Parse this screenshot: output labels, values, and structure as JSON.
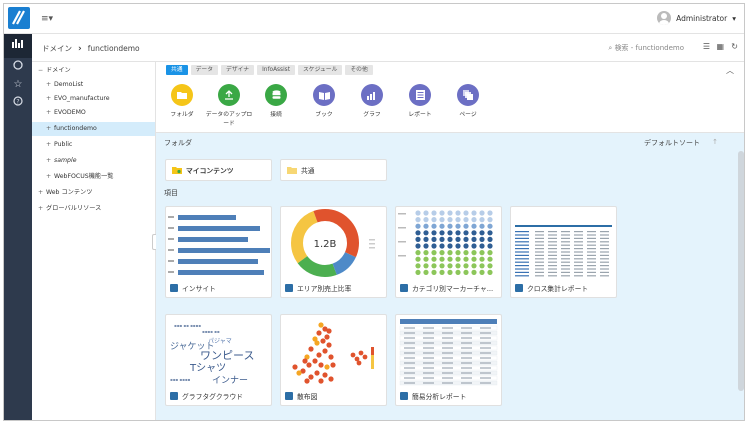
{
  "header": {
    "menu_glyph": "≡▾",
    "user": "Administrator",
    "user_caret": "▾"
  },
  "leftnav": {
    "items": [
      "chart-icon",
      "circle-icon",
      "star-icon",
      "help-icon"
    ]
  },
  "breadcrumb": {
    "root": "ドメイン",
    "separator": "›",
    "current": "functiondemo"
  },
  "toolbar": {
    "search_placeholder": "検索 - functiondemo"
  },
  "tree": {
    "root": "ドメイン",
    "items": [
      "DemoList",
      "EVO_manufacture",
      "EVODEMO",
      "functiondemo",
      "Public",
      "sample",
      "WebFOCUS機能一覧"
    ],
    "others": [
      "Web コンテンツ",
      "グローバルリソース"
    ]
  },
  "ribbon": {
    "tabs": [
      "共通",
      "データ",
      "デザイナ",
      "InfoAssist",
      "スケジュール",
      "その他"
    ],
    "tools": [
      {
        "label": "フォルダ",
        "color": "#f5c518"
      },
      {
        "label": "データのアップロード",
        "color": "#3aa845"
      },
      {
        "label": "接続",
        "color": "#3aa845"
      },
      {
        "label": "ブック",
        "color": "#6c6fc4"
      },
      {
        "label": "グラフ",
        "color": "#6c6fc4"
      },
      {
        "label": "レポート",
        "color": "#6c6fc4"
      },
      {
        "label": "ページ",
        "color": "#6c6fc4"
      }
    ]
  },
  "content": {
    "folders_title": "フォルダ",
    "sort_label": "デフォルトソート",
    "folders": [
      "マイコンテンツ",
      "共通"
    ],
    "items_title": "項目",
    "items": [
      "インサイト",
      "エリア別売上比率",
      "カテゴリ別マーカーチャ...",
      "クロス集計レポート",
      "グラフタグクラウド",
      "散布図",
      "簡易分析レポート"
    ],
    "donut_value": "1.2B",
    "cloud_words": [
      "ジャケット",
      "パジャマ",
      "ワンピース",
      "Tシャツ",
      "インナー"
    ]
  },
  "colors": {
    "accent": "#1a93e6",
    "nav": "#2e3a4d",
    "selected": "#d4ecfb"
  }
}
